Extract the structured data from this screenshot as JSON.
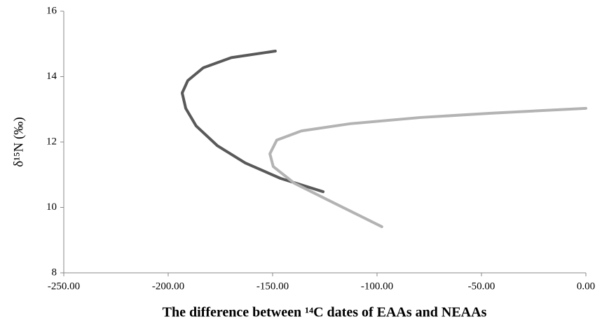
{
  "chart_data": {
    "type": "line",
    "xlabel": "The difference between ¹⁴C dates of EAAs and NEAAs",
    "ylabel": "δ¹⁵N (‰)",
    "xlim": [
      -250,
      0
    ],
    "xticks": [
      {
        "value": -250,
        "label": "-250.00"
      },
      {
        "value": -200,
        "label": "-200.00"
      },
      {
        "value": -150,
        "label": "-150.00"
      },
      {
        "value": -100,
        "label": "-100.00"
      },
      {
        "value": -50,
        "label": "-50.00"
      },
      {
        "value": 0,
        "label": "0.00"
      }
    ],
    "ylim": [
      8,
      16
    ],
    "yticks": [
      8,
      10,
      12,
      14,
      16
    ],
    "grid": false,
    "series": [
      {
        "color": "#595959",
        "x": [
          -148.7,
          -169.8,
          -183.2,
          -190.6,
          -193.3,
          -191.6,
          -186.6,
          -176.5,
          -163.1,
          -146.3,
          -125.8
        ],
        "values": [
          14.78,
          14.58,
          14.27,
          13.88,
          13.5,
          13.03,
          12.49,
          11.89,
          11.36,
          10.89,
          10.48
        ]
      },
      {
        "color": "#b3b3b3",
        "x": [
          -97.7,
          -119.5,
          -139.6,
          -149.7,
          -151.3,
          -148.0,
          -136.2,
          -112.8,
          -79.2,
          -45.6,
          0
        ],
        "values": [
          9.41,
          10.1,
          10.74,
          11.25,
          11.64,
          12.06,
          12.34,
          12.56,
          12.75,
          12.88,
          13.03
        ]
      }
    ]
  }
}
